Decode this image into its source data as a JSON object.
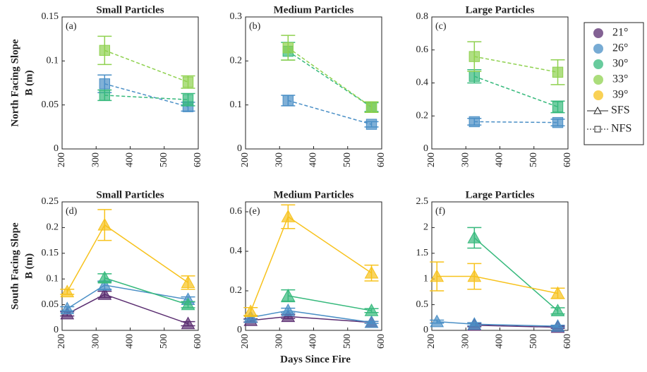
{
  "xlabel": "Days Since Fire",
  "legend": {
    "items": [
      {
        "name": "21°",
        "color": "#5a2d70"
      },
      {
        "name": "26°",
        "color": "#4a8fc6"
      },
      {
        "name": "30°",
        "color": "#36b97c"
      },
      {
        "name": "33°",
        "color": "#8fd14f"
      },
      {
        "name": "39°",
        "color": "#f7c21c"
      }
    ],
    "styles": [
      {
        "name": "SFS",
        "marker": "triangle",
        "linestyle": "solid"
      },
      {
        "name": "NFS",
        "marker": "square",
        "linestyle": "dashed"
      }
    ]
  },
  "chart_data": [
    {
      "type": "line",
      "title": "Small Particles",
      "annotation": "(a)",
      "ylabel": [
        "North Facing Slope",
        "B (m)"
      ],
      "style": "NFS",
      "x": [
        325,
        570
      ],
      "xlim": [
        200,
        600
      ],
      "xticks": [
        200,
        300,
        400,
        500,
        600
      ],
      "ylim": [
        0,
        0.15
      ],
      "yticks": [
        0,
        0.05,
        0.1,
        0.15
      ],
      "series": [
        {
          "name": "26°",
          "values": [
            0.074,
            0.048
          ],
          "errors": [
            0.01,
            0.005
          ]
        },
        {
          "name": "30°",
          "values": [
            0.061,
            0.056
          ],
          "errors": [
            0.006,
            0.007
          ]
        },
        {
          "name": "33°",
          "values": [
            0.112,
            0.076
          ],
          "errors": [
            0.016,
            0.007
          ]
        }
      ]
    },
    {
      "type": "line",
      "title": "Medium Particles",
      "annotation": "(b)",
      "style": "NFS",
      "x": [
        325,
        570
      ],
      "xlim": [
        200,
        600
      ],
      "xticks": [
        200,
        300,
        400,
        500,
        600
      ],
      "ylim": [
        0,
        0.3
      ],
      "yticks": [
        0,
        0.1,
        0.2,
        0.3
      ],
      "series": [
        {
          "name": "26°",
          "values": [
            0.11,
            0.056
          ],
          "errors": [
            0.012,
            0.006
          ]
        },
        {
          "name": "30°",
          "values": [
            0.222,
            0.095
          ],
          "errors": [
            0.02,
            0.01
          ]
        },
        {
          "name": "33°",
          "values": [
            0.23,
            0.095
          ],
          "errors": [
            0.028,
            0.012
          ]
        }
      ]
    },
    {
      "type": "line",
      "title": "Large Particles",
      "annotation": "(c)",
      "style": "NFS",
      "x": [
        325,
        570
      ],
      "xlim": [
        200,
        600
      ],
      "xticks": [
        200,
        300,
        400,
        500,
        600
      ],
      "ylim": [
        0,
        0.8
      ],
      "yticks": [
        0,
        0.2,
        0.4,
        0.6,
        0.8
      ],
      "series": [
        {
          "name": "26°",
          "values": [
            0.165,
            0.16
          ],
          "errors": [
            0.02,
            0.02
          ]
        },
        {
          "name": "30°",
          "values": [
            0.44,
            0.255
          ],
          "errors": [
            0.04,
            0.035
          ]
        },
        {
          "name": "33°",
          "values": [
            0.56,
            0.465
          ],
          "errors": [
            0.09,
            0.075
          ]
        }
      ]
    },
    {
      "type": "line",
      "title": "Small Particles",
      "annotation": "(d)",
      "ylabel": [
        "South Facing Slope",
        "B (m)"
      ],
      "style": "SFS",
      "x": [
        215,
        325,
        570
      ],
      "xlim": [
        200,
        600
      ],
      "xticks": [
        200,
        300,
        400,
        500,
        600
      ],
      "ylim": [
        0,
        0.25
      ],
      "yticks": [
        0,
        0.05,
        0.1,
        0.15,
        0.2,
        0.25
      ],
      "series": [
        {
          "name": "21°",
          "values": [
            0.032,
            0.07,
            0.013
          ],
          "errors": [
            0.004,
            0.006,
            0.004
          ]
        },
        {
          "name": "26°",
          "values": [
            0.042,
            0.088,
            0.06
          ],
          "errors": [
            0.004,
            0.008,
            0.005
          ]
        },
        {
          "name": "30°",
          "values": [
            null,
            0.102,
            0.05
          ],
          "errors": [
            null,
            0.008,
            0.006
          ]
        },
        {
          "name": "39°",
          "values": [
            0.075,
            0.205,
            0.093
          ],
          "errors": [
            0.005,
            0.03,
            0.013
          ]
        }
      ]
    },
    {
      "type": "line",
      "title": "Medium Particles",
      "annotation": "(e)",
      "style": "SFS",
      "x": [
        215,
        325,
        570
      ],
      "xlim": [
        200,
        600
      ],
      "xticks": [
        200,
        300,
        400,
        500,
        600
      ],
      "ylim": [
        0,
        0.65
      ],
      "yticks": [
        0,
        0.2,
        0.4,
        0.6
      ],
      "series": [
        {
          "name": "21°",
          "values": [
            0.05,
            0.07,
            0.04
          ],
          "errors": [
            0.008,
            0.01,
            0.005
          ]
        },
        {
          "name": "26°",
          "values": [
            0.065,
            0.1,
            0.04
          ],
          "errors": [
            0.01,
            0.012,
            0.005
          ]
        },
        {
          "name": "30°",
          "values": [
            null,
            0.175,
            0.1
          ],
          "errors": [
            null,
            0.03,
            0.01
          ]
        },
        {
          "name": "39°",
          "values": [
            0.095,
            0.575,
            0.29
          ],
          "errors": [
            0.02,
            0.06,
            0.04
          ]
        }
      ]
    },
    {
      "type": "line",
      "title": "Large Particles",
      "annotation": "(f)",
      "style": "SFS",
      "x": [
        215,
        325,
        570
      ],
      "xlim": [
        200,
        600
      ],
      "xticks": [
        200,
        300,
        400,
        500,
        600
      ],
      "ylim": [
        0,
        2.5
      ],
      "yticks": [
        0,
        0.5,
        1,
        1.5,
        2,
        2.5
      ],
      "series": [
        {
          "name": "21°",
          "values": [
            null,
            0.1,
            0.06
          ],
          "errors": [
            null,
            0.03,
            0.02
          ]
        },
        {
          "name": "26°",
          "values": [
            0.17,
            0.12,
            0.08
          ],
          "errors": [
            0.03,
            0.03,
            0.02
          ]
        },
        {
          "name": "30°",
          "values": [
            null,
            1.8,
            0.38
          ],
          "errors": [
            null,
            0.2,
            0.06
          ]
        },
        {
          "name": "39°",
          "values": [
            1.05,
            1.05,
            0.72
          ],
          "errors": [
            0.28,
            0.25,
            0.1
          ]
        }
      ]
    }
  ]
}
